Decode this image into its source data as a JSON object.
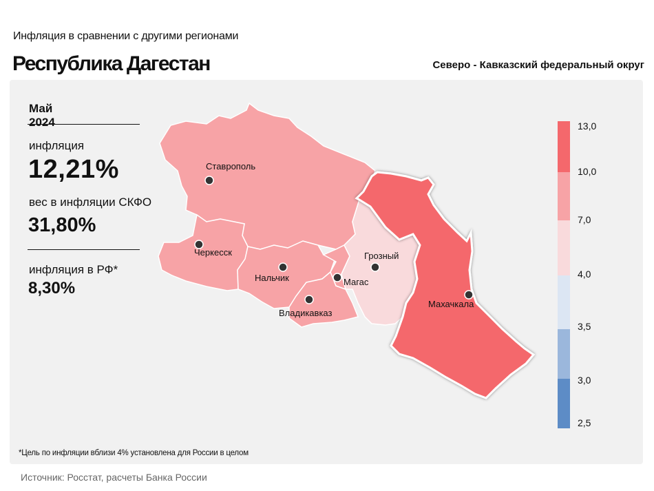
{
  "header": {
    "subtitle": "Инфляция  в сравнении  с другими  регионами",
    "title": "Республика Дагестан",
    "district": "Северо - Кавказский федеральный округ"
  },
  "stats": {
    "period": "Май 2024",
    "inflation_label": "инфляция",
    "inflation_value": "12,21%",
    "weight_label": "вес в инфляции  СКФО",
    "weight_value": "31,80%",
    "rf_label": "инфляция  в РФ*",
    "rf_value": "8,30%"
  },
  "map": {
    "regions": [
      {
        "name": "Ставропольский край",
        "city": "Ставрополь",
        "bin": "7,0–10,0",
        "color": "#f7a3a6"
      },
      {
        "name": "Карачаево-Черкесская Республика",
        "city": "Черкесск",
        "bin": "7,0–10,0",
        "color": "#f7a3a6"
      },
      {
        "name": "Кабардино-Балкарская Республика",
        "city": "Нальчик",
        "bin": "7,0–10,0",
        "color": "#f7a3a6"
      },
      {
        "name": "Республика Северная Осетия — Алания",
        "city": "Владикавказ",
        "bin": "7,0–10,0",
        "color": "#f7a3a6"
      },
      {
        "name": "Республика Ингушетия",
        "city": "Магас",
        "bin": "7,0–10,0",
        "color": "#f7a3a6"
      },
      {
        "name": "Чеченская Республика",
        "city": "Грозный",
        "bin": "4,0–7,0",
        "color": "#f9dadc"
      },
      {
        "name": "Республика Дагестан",
        "city": "Махачкала",
        "bin": "10,0–13,0",
        "color": "#f4686c",
        "highlighted": true
      }
    ]
  },
  "legend": {
    "ticks": [
      "13,0",
      "10,0",
      "7,0",
      "4,0",
      "3,5",
      "3,0",
      "2,5"
    ],
    "colors": [
      "#f4686c",
      "#f7a3a6",
      "#f9dadc",
      "#dce6f3",
      "#9bb7dc",
      "#5d8cc6"
    ]
  },
  "footnote": "*Цель по инфляции вблизи 4% установлена для России в целом",
  "source": "Источник: Росстат, расчеты Банка России"
}
